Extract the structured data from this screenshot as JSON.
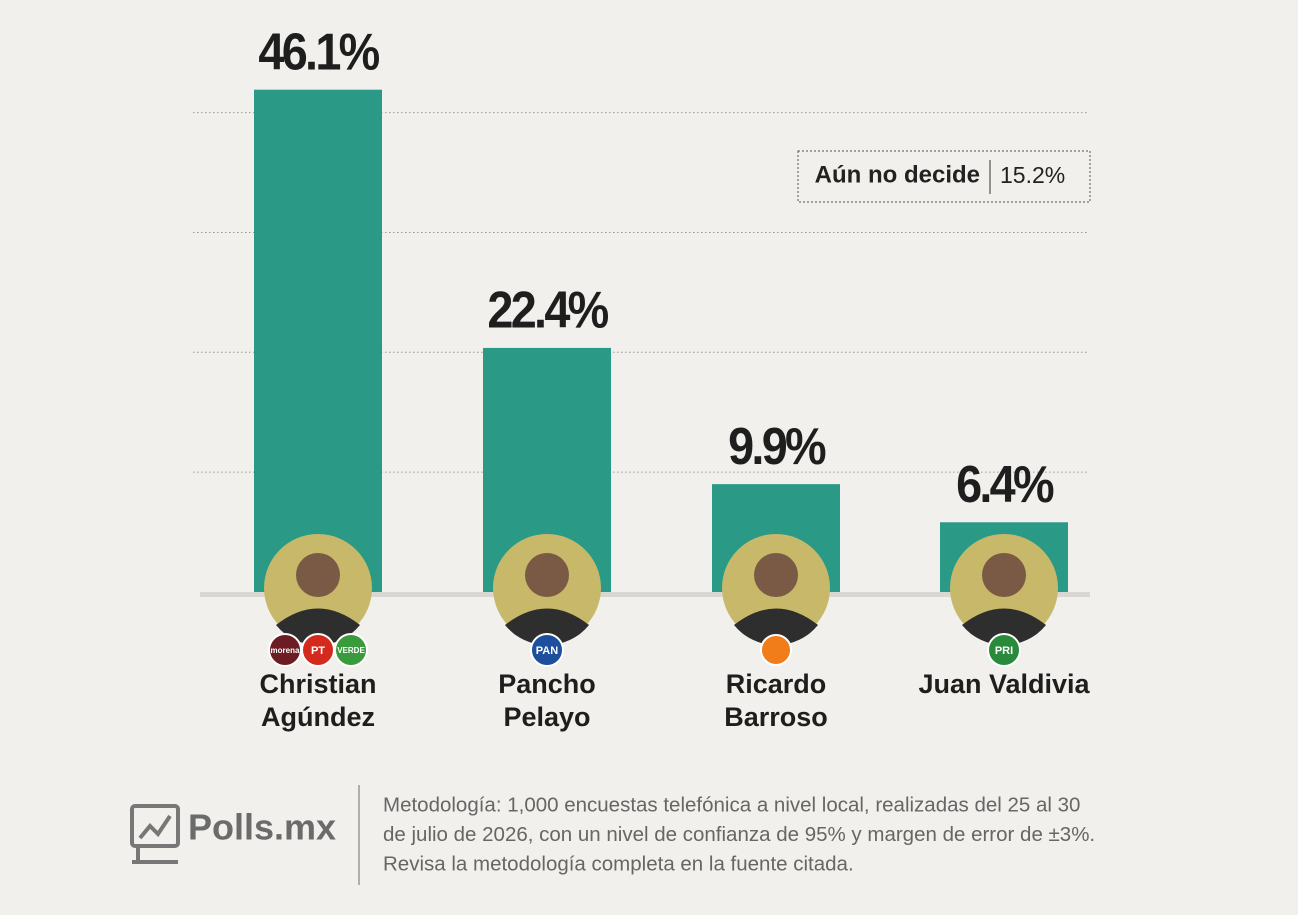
{
  "chart_data": {
    "type": "bar",
    "categories": [
      "Christian Agúndez",
      "Pancho Pelayo",
      "Ricardo Barroso",
      "Juan Valdivia"
    ],
    "values": [
      46.1,
      22.4,
      9.9,
      6.4
    ],
    "value_labels": [
      "46.1%",
      "22.4%",
      "9.9%",
      "6.4%"
    ],
    "color": "#2a9a86",
    "ylim": [
      0,
      48
    ],
    "yticks": [
      11,
      22,
      33,
      44
    ],
    "grid": true,
    "annotation": {
      "label": "Aún no decide",
      "value_label": "15.2%"
    }
  },
  "party_logos": [
    [
      "morena",
      "PT",
      "VERDE"
    ],
    [
      "PAN"
    ],
    [],
    [
      "PRI"
    ]
  ],
  "footer": {
    "brand": "Polls.mx",
    "methodology": [
      "Metodología: 1,000 encuestas telefónica a nivel local, realizadas del 25 al 30",
      "de julio de 2026, con un nivel de confianza de 95% y margen de error de ±3%.",
      "Revisa la metodología completa en la fuente citada."
    ]
  }
}
